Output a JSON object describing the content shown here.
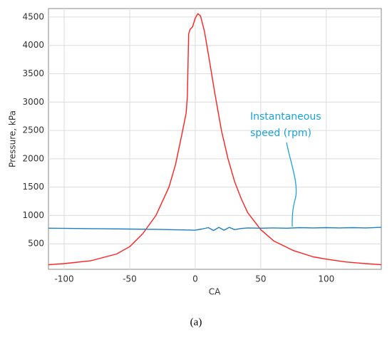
{
  "chart_data": {
    "type": "line",
    "xlabel": "CA",
    "ylabel": "Pressure, kPa",
    "xlim": [
      -112,
      142
    ],
    "ylim": [
      50,
      4650
    ],
    "xticks": [
      -100,
      -50,
      0,
      50,
      100
    ],
    "yticks": [
      500,
      1000,
      1500,
      2000,
      2500,
      3000,
      3500,
      4000,
      4500
    ],
    "grid": true,
    "annotation": [
      "Instantaneous",
      "speed (rpm)"
    ],
    "caption": "(a)",
    "series": [
      {
        "color": "#ff2020",
        "x": [
          -112,
          -100,
          -80,
          -60,
          -50,
          -40,
          -30,
          -20,
          -15,
          -10,
          -7,
          -6,
          -5,
          -4,
          -2,
          0,
          2,
          4,
          7,
          10,
          15,
          20,
          25,
          30,
          35,
          40,
          50,
          60,
          75,
          90,
          100,
          115,
          130,
          142
        ],
        "values": [
          130,
          150,
          200,
          320,
          450,
          680,
          1000,
          1500,
          1900,
          2450,
          2800,
          3100,
          4200,
          4280,
          4330,
          4480,
          4560,
          4520,
          4250,
          3850,
          3150,
          2500,
          2000,
          1600,
          1300,
          1050,
          750,
          550,
          380,
          270,
          230,
          180,
          150,
          130
        ]
      },
      {
        "color": "#1f7fc4",
        "x": [
          -112,
          -90,
          -70,
          -50,
          -30,
          -10,
          0,
          5,
          10,
          14,
          18,
          22,
          26,
          30,
          35,
          40,
          50,
          60,
          70,
          80,
          90,
          100,
          110,
          120,
          130,
          142
        ],
        "values": [
          775,
          770,
          765,
          760,
          755,
          745,
          740,
          760,
          785,
          735,
          790,
          740,
          790,
          750,
          770,
          780,
          775,
          780,
          775,
          785,
          780,
          785,
          780,
          785,
          780,
          790
        ]
      }
    ]
  }
}
